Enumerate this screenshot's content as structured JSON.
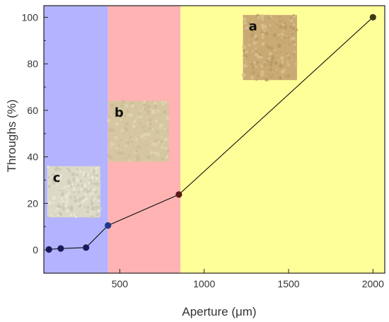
{
  "chart_data": {
    "type": "line",
    "xlabel": "Aperture (μm)",
    "ylabel": "Throughs (%)",
    "xlim": [
      50,
      2070
    ],
    "ylim": [
      -10,
      105
    ],
    "xticks": [
      500,
      1000,
      1500,
      2000
    ],
    "yticks": [
      0,
      20,
      40,
      60,
      80,
      100
    ],
    "grid": false,
    "regions": [
      {
        "from": 50,
        "to": 430,
        "color": "#b3b3ff"
      },
      {
        "from": 430,
        "to": 860,
        "color": "#ffb3b3"
      },
      {
        "from": 860,
        "to": 2070,
        "color": "#ffff99"
      }
    ],
    "series": [
      {
        "x": [
          80,
          150,
          300,
          430,
          850,
          2000
        ],
        "y": [
          0.2,
          0.6,
          1.0,
          10.5,
          23.8,
          100
        ],
        "point_colors": [
          "#1a1a5a",
          "#1a1a5a",
          "#1a1a5a",
          "#1f3a8a",
          "#5a1a1a",
          "#3a3a14"
        ],
        "line_color": "#111111"
      }
    ],
    "annotations": [
      {
        "label": "a",
        "x_from": 1230,
        "x_to": 1550,
        "y_from": 73,
        "y_to": 101,
        "colors": [
          "#c9aa74",
          "#d8c08f",
          "#b89a62"
        ]
      },
      {
        "label": "b",
        "x_from": 435,
        "x_to": 790,
        "y_from": 38,
        "y_to": 64,
        "colors": [
          "#d6c7a2",
          "#cdbb92",
          "#e0d4b3"
        ]
      },
      {
        "label": "c",
        "x_from": 70,
        "x_to": 385,
        "y_from": 14,
        "y_to": 36,
        "colors": [
          "#dcd9c6",
          "#e8e6d8",
          "#c9c5b0"
        ]
      }
    ]
  }
}
